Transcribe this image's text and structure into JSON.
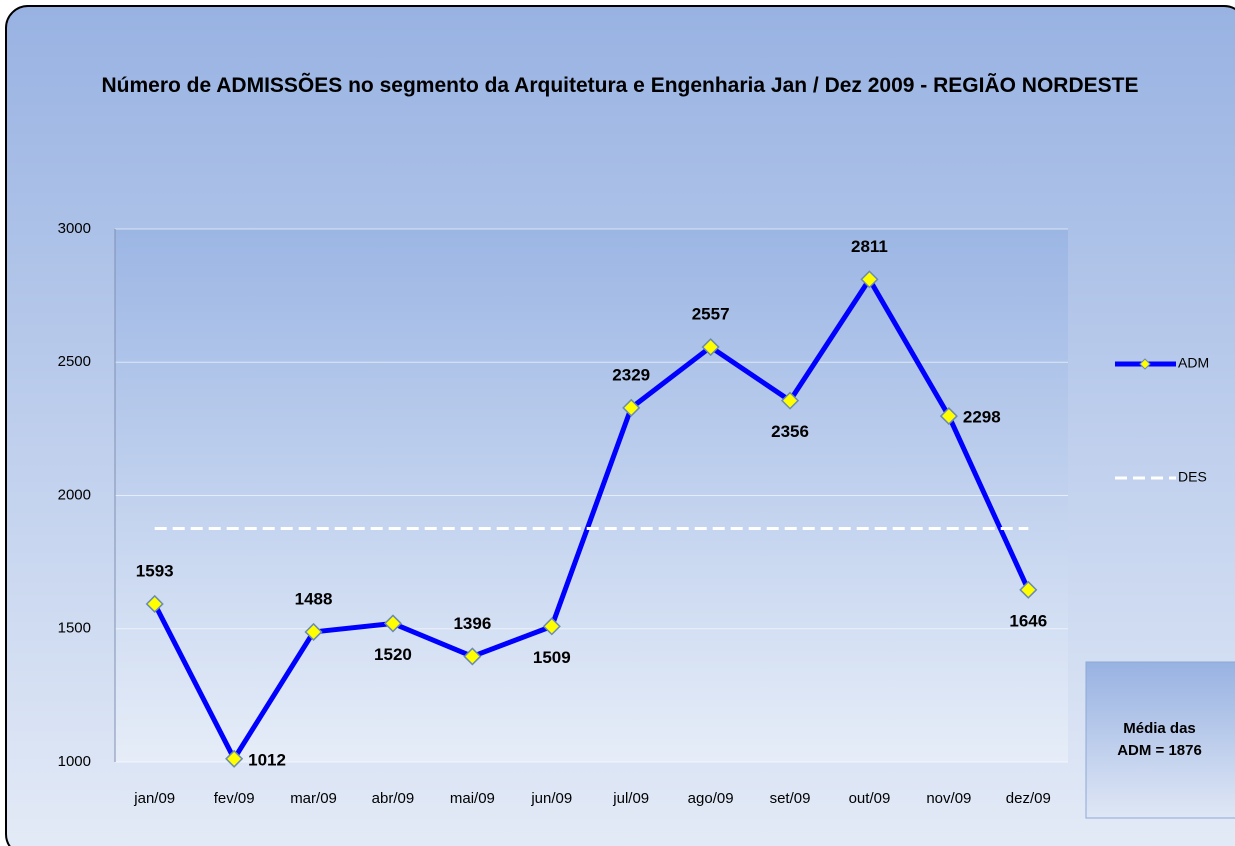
{
  "chart_data": {
    "type": "line",
    "title": "Número de ADMISSÕES no segmento da Arquitetura e Engenharia Jan / Dez 2009 - REGIÃO NORDESTE",
    "categories": [
      "jan/09",
      "fev/09",
      "mar/09",
      "abr/09",
      "mai/09",
      "jun/09",
      "jul/09",
      "ago/09",
      "set/09",
      "out/09",
      "nov/09",
      "dez/09"
    ],
    "series": [
      {
        "name": "ADM",
        "color": "#0000ff",
        "values": [
          1593,
          1012,
          1488,
          1520,
          1396,
          1509,
          2329,
          2557,
          2356,
          2811,
          2298,
          1646
        ]
      },
      {
        "name": "DES",
        "color": "#ffffff",
        "values": [
          1876,
          1876,
          1876,
          1876,
          1876,
          1876,
          1876,
          1876,
          1876,
          1876,
          1876,
          1876
        ]
      }
    ],
    "ylim": [
      1000,
      3000
    ],
    "yticks": [
      1000,
      1500,
      2000,
      2500,
      3000
    ],
    "grid": true,
    "annotation": "Média das ADM = 1876"
  }
}
